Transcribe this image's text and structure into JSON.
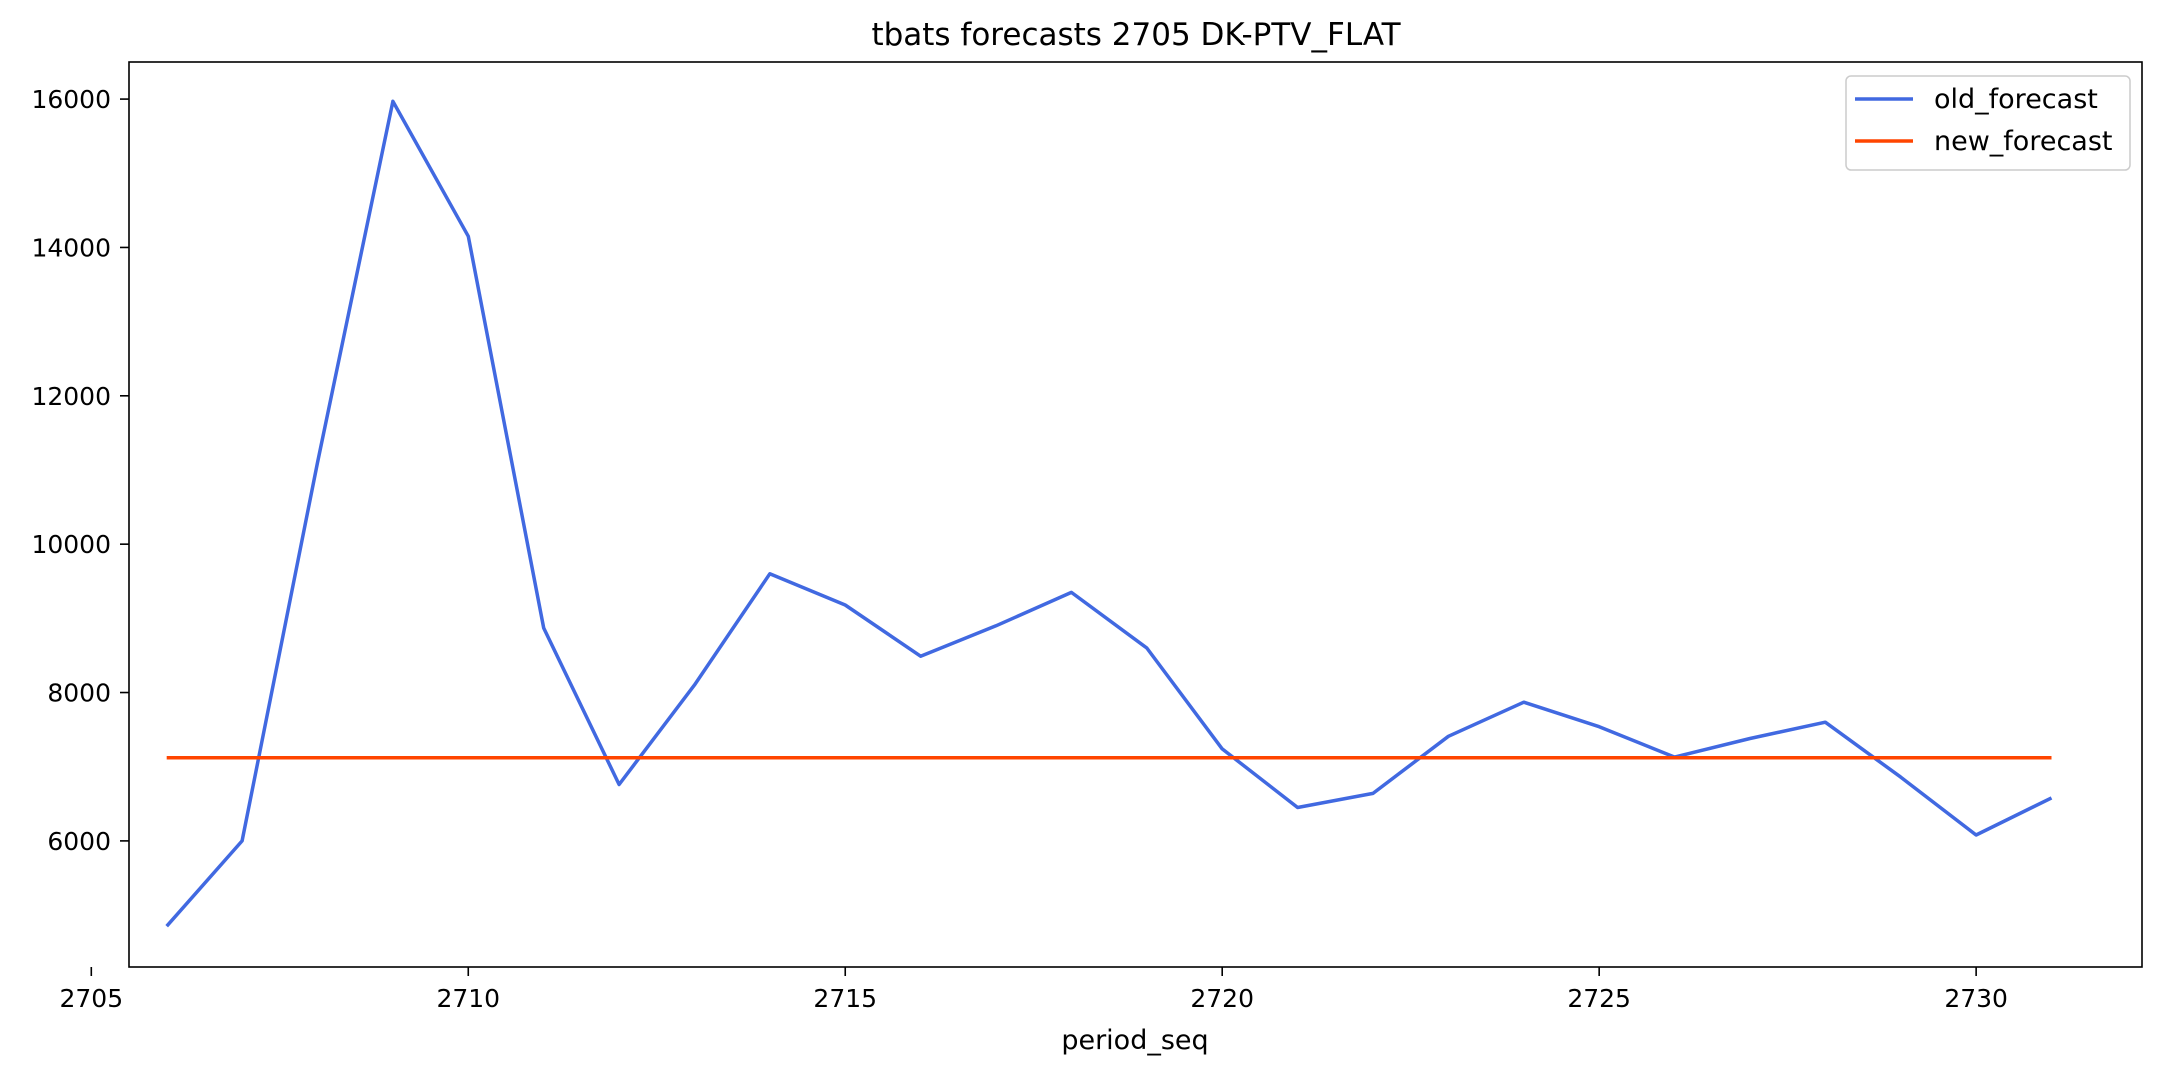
{
  "chart_data": {
    "type": "line",
    "title": "tbats forecasts 2705 DK-PTV_FLAT",
    "xlabel": "period_seq",
    "ylabel": "",
    "xlim": [
      2705.5,
      2732.2
    ],
    "ylim": [
      4300,
      16500
    ],
    "xticks": [
      2705,
      2710,
      2715,
      2720,
      2725,
      2730
    ],
    "xtick_labels": [
      "2705",
      "2710",
      "2715",
      "2720",
      "2725",
      "2730"
    ],
    "yticks": [
      6000,
      8000,
      10000,
      12000,
      14000,
      16000
    ],
    "ytick_labels": [
      "6000",
      "8000",
      "10000",
      "12000",
      "14000",
      "16000"
    ],
    "grid": false,
    "legend_position": "top-right",
    "x": [
      2706,
      2707,
      2708,
      2709,
      2710,
      2711,
      2712,
      2713,
      2714,
      2715,
      2716,
      2717,
      2718,
      2719,
      2720,
      2721,
      2722,
      2723,
      2724,
      2725,
      2726,
      2727,
      2728,
      2729,
      2730,
      2731
    ],
    "series": [
      {
        "name": "old_forecast",
        "color": "#4169E1",
        "values": [
          4850,
          6000,
          11100,
          15970,
          14150,
          8870,
          6760,
          8100,
          9600,
          9180,
          8490,
          8900,
          9350,
          8600,
          7240,
          6450,
          6640,
          7410,
          7870,
          7540,
          7130,
          7380,
          7600,
          6860,
          6080,
          6580
        ]
      },
      {
        "name": "new_forecast",
        "color": "#FF4500",
        "values": [
          7120,
          7120,
          7120,
          7120,
          7120,
          7120,
          7120,
          7120,
          7120,
          7120,
          7120,
          7120,
          7120,
          7120,
          7120,
          7120,
          7120,
          7120,
          7120,
          7120,
          7120,
          7120,
          7120,
          7120,
          7120,
          7120
        ]
      }
    ]
  }
}
